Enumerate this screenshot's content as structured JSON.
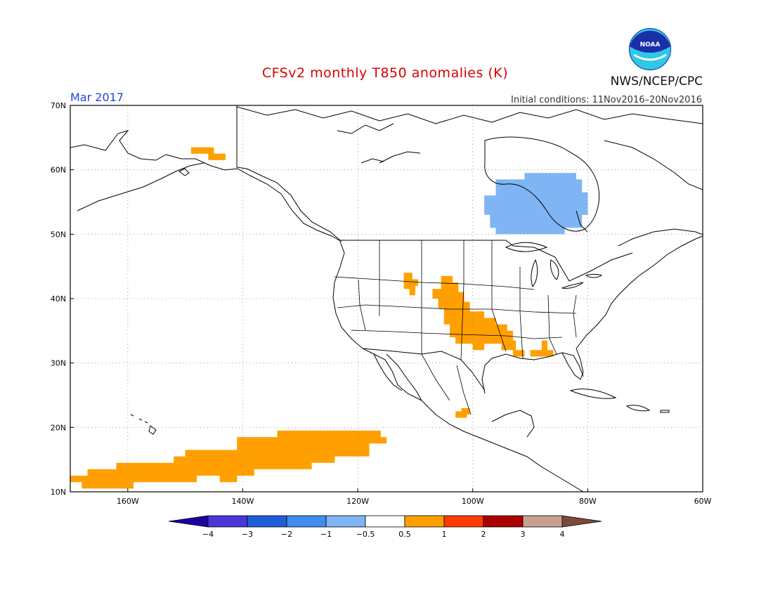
{
  "title": "CFSv2 monthly T850 anomalies (K)",
  "period": "Mar 2017",
  "initial_conditions": "Initial conditions: 11Nov2016–20Nov2016",
  "agency": "NWS/NCEP/CPC",
  "logo_text": "NOAA",
  "colors": {
    "title": "#dd0000",
    "period": "#2244dd",
    "cool_anomaly": "#7fb4f5",
    "warm_anomaly": "#ffa000"
  },
  "map": {
    "lon_range": [
      -170,
      -60
    ],
    "lat_range": [
      10,
      70
    ],
    "lat_labels": [
      "10N",
      "20N",
      "30N",
      "40N",
      "50N",
      "60N",
      "70N"
    ],
    "lon_labels": [
      "160W",
      "140W",
      "120W",
      "100W",
      "80W",
      "60W"
    ],
    "anomaly_regions": [
      {
        "name": "Hudson Bay / Central Canada",
        "value_range": "-1 to -0.5",
        "color": "#7fb4f5",
        "polygon": [
          [
            -91,
            59.5
          ],
          [
            -82,
            59.5
          ],
          [
            -82,
            58.5
          ],
          [
            -81,
            58.5
          ],
          [
            -81,
            56.5
          ],
          [
            -80,
            56.5
          ],
          [
            -80,
            53
          ],
          [
            -81,
            53
          ],
          [
            -81,
            51
          ],
          [
            -84,
            51
          ],
          [
            -84,
            50
          ],
          [
            -96,
            50
          ],
          [
            -96,
            51
          ],
          [
            -97,
            51
          ],
          [
            -97,
            53
          ],
          [
            -98,
            53
          ],
          [
            -98,
            56
          ],
          [
            -96,
            56
          ],
          [
            -96,
            58.5
          ],
          [
            -91,
            58.5
          ]
        ]
      },
      {
        "name": "Wyoming patch",
        "value_range": "0.5 to 1",
        "color": "#ffa000",
        "polygon": [
          [
            -112,
            44
          ],
          [
            -110.5,
            44
          ],
          [
            -110.5,
            43
          ],
          [
            -109.5,
            43
          ],
          [
            -109.5,
            42
          ],
          [
            -110,
            42
          ],
          [
            -110,
            40.5
          ],
          [
            -111,
            40.5
          ],
          [
            -111,
            41.5
          ],
          [
            -112,
            41.5
          ]
        ]
      },
      {
        "name": "Southern Plains",
        "value_range": "0.5 to 1",
        "color": "#ffa000",
        "polygon": [
          [
            -105.5,
            43.5
          ],
          [
            -103.5,
            43.5
          ],
          [
            -103.5,
            42.5
          ],
          [
            -102.5,
            42.5
          ],
          [
            -102.5,
            41
          ],
          [
            -101.5,
            41
          ],
          [
            -101.5,
            39.5
          ],
          [
            -100.5,
            39.5
          ],
          [
            -100.5,
            38
          ],
          [
            -98,
            38
          ],
          [
            -98,
            37
          ],
          [
            -96,
            37
          ],
          [
            -96,
            36
          ],
          [
            -94,
            36
          ],
          [
            -94,
            35
          ],
          [
            -93,
            35
          ],
          [
            -93,
            33.5
          ],
          [
            -92.5,
            33.5
          ],
          [
            -92.5,
            32
          ],
          [
            -91,
            32
          ],
          [
            -91,
            31
          ],
          [
            -93,
            31
          ],
          [
            -93,
            32
          ],
          [
            -95,
            32
          ],
          [
            -95,
            33
          ],
          [
            -98,
            33
          ],
          [
            -98,
            32
          ],
          [
            -100,
            32
          ],
          [
            -100,
            33
          ],
          [
            -103,
            33
          ],
          [
            -103,
            34
          ],
          [
            -104,
            34
          ],
          [
            -104,
            36
          ],
          [
            -105,
            36
          ],
          [
            -105,
            38.5
          ],
          [
            -106,
            38.5
          ],
          [
            -106,
            40
          ],
          [
            -107,
            40
          ],
          [
            -107,
            41.5
          ],
          [
            -105.5,
            41.5
          ]
        ]
      },
      {
        "name": "Gulf coast patch",
        "value_range": "0.5 to 1",
        "color": "#ffa000",
        "polygon": [
          [
            -88,
            33.5
          ],
          [
            -87,
            33.5
          ],
          [
            -87,
            32
          ],
          [
            -86,
            32
          ],
          [
            -86,
            31
          ],
          [
            -90,
            31
          ],
          [
            -90,
            32
          ],
          [
            -88,
            32
          ]
        ]
      },
      {
        "name": "Mexico patch",
        "value_range": "0.5 to 1",
        "color": "#ffa000",
        "polygon": [
          [
            -102,
            23
          ],
          [
            -100.5,
            23
          ],
          [
            -100.5,
            22
          ],
          [
            -101,
            22
          ],
          [
            -101,
            21.5
          ],
          [
            -103,
            21.5
          ],
          [
            -103,
            22.5
          ],
          [
            -102,
            22.5
          ]
        ]
      },
      {
        "name": "Alaska coast patch",
        "value_range": "0.5 to 1",
        "color": "#ffa000",
        "polygon": [
          [
            -149,
            63.5
          ],
          [
            -145,
            63.5
          ],
          [
            -145,
            62.5
          ],
          [
            -143,
            62.5
          ],
          [
            -143,
            61.5
          ],
          [
            -146,
            61.5
          ],
          [
            -146,
            62.5
          ],
          [
            -149,
            62.5
          ]
        ]
      },
      {
        "name": "Subtropical Pacific",
        "value_range": "0.5 to 1",
        "color": "#ffa000",
        "polygon": [
          [
            -170,
            12.5
          ],
          [
            -167,
            12.5
          ],
          [
            -167,
            13.5
          ],
          [
            -162,
            13.5
          ],
          [
            -162,
            14.5
          ],
          [
            -152,
            14.5
          ],
          [
            -152,
            15.5
          ],
          [
            -150,
            15.5
          ],
          [
            -150,
            16.5
          ],
          [
            -141,
            16.5
          ],
          [
            -141,
            18.5
          ],
          [
            -134,
            18.5
          ],
          [
            -134,
            19.5
          ],
          [
            -116,
            19.5
          ],
          [
            -116,
            18.5
          ],
          [
            -115,
            18.5
          ],
          [
            -115,
            17.5
          ],
          [
            -118,
            17.5
          ],
          [
            -118,
            15.5
          ],
          [
            -124,
            15.5
          ],
          [
            -124,
            14.5
          ],
          [
            -128,
            14.5
          ],
          [
            -128,
            13.5
          ],
          [
            -138,
            13.5
          ],
          [
            -138,
            12.5
          ],
          [
            -141,
            12.5
          ],
          [
            -141,
            11.5
          ],
          [
            -144,
            11.5
          ],
          [
            -144,
            12.5
          ],
          [
            -148,
            12.5
          ],
          [
            -148,
            11.5
          ],
          [
            -159,
            11.5
          ],
          [
            -159,
            10.5
          ],
          [
            -168,
            10.5
          ],
          [
            -168,
            11.5
          ],
          [
            -170,
            11.5
          ]
        ]
      }
    ]
  },
  "colorbar": {
    "colors": [
      "#1c00a0",
      "#4b36d8",
      "#1f5ed8",
      "#3f8df0",
      "#7fb4f5",
      "#ffffff",
      "#ffa000",
      "#ff3a00",
      "#aa0000",
      "#c9a090",
      "#7a4a3a"
    ],
    "labels": [
      "−4",
      "−3",
      "−2",
      "−1",
      "−0.5",
      "0.5",
      "1",
      "2",
      "3",
      "4"
    ]
  }
}
